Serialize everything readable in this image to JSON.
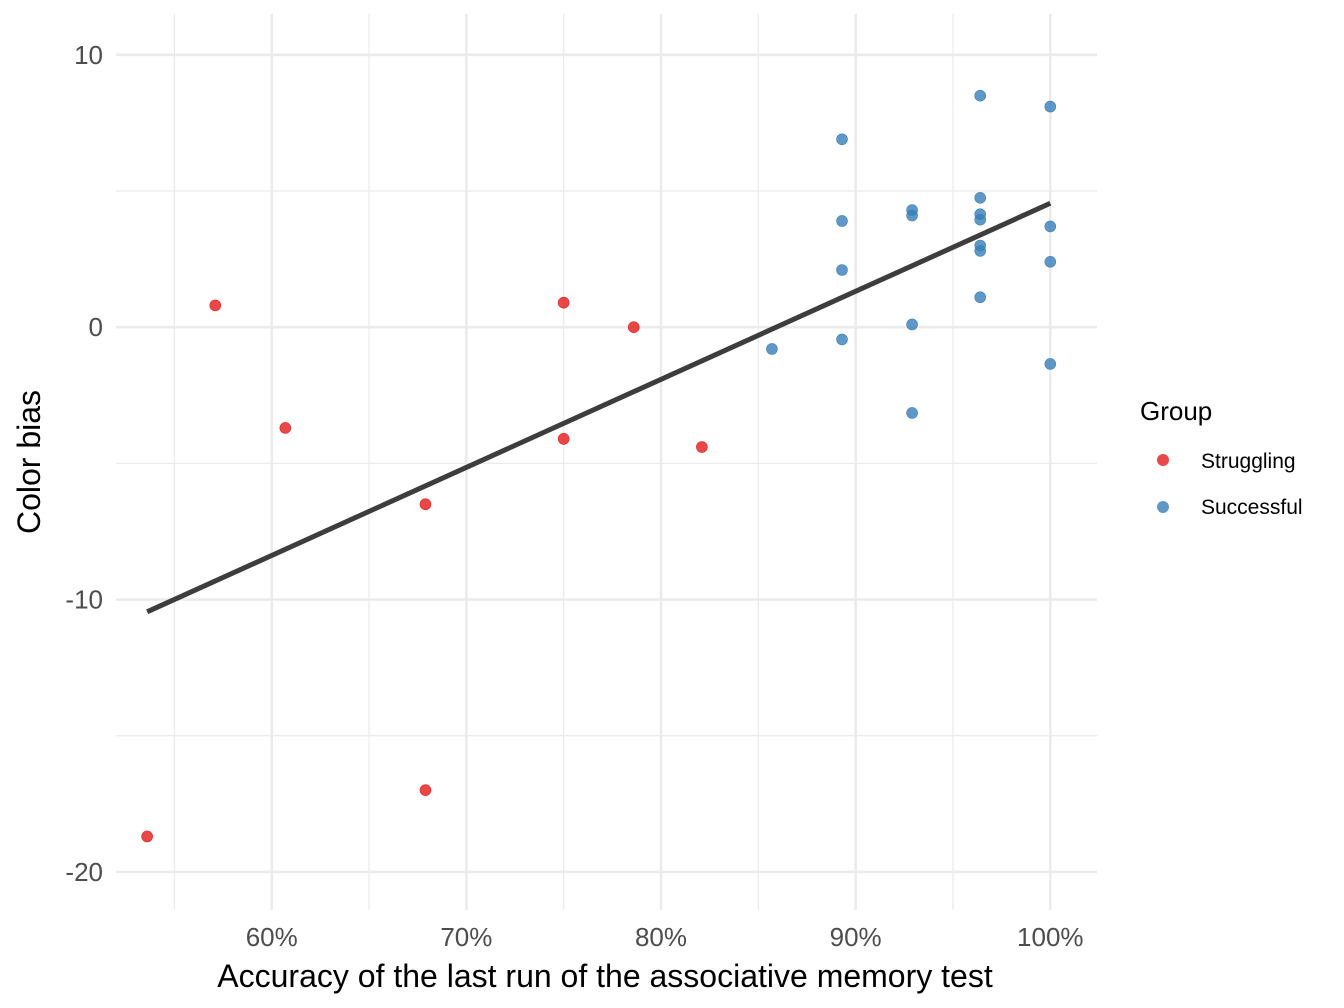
{
  "chart_data": {
    "type": "scatter",
    "title": "",
    "xlabel": "Accuracy of the last run of the associative memory test",
    "ylabel": "Color bias",
    "xlim": [
      0.52,
      1.024
    ],
    "ylim": [
      -21.4,
      11.5
    ],
    "x_ticks": [
      0.6,
      0.7,
      0.8,
      0.9,
      1.0
    ],
    "x_tick_labels": [
      "60%",
      "70%",
      "80%",
      "90%",
      "100%"
    ],
    "x_minor_ticks": [
      0.55,
      0.65,
      0.75,
      0.85,
      0.95
    ],
    "y_ticks": [
      10,
      0,
      -10,
      -20
    ],
    "y_tick_labels": [
      "10",
      "0",
      "-10",
      "-20"
    ],
    "y_minor_ticks": [
      5,
      -5,
      -15
    ],
    "grid": true,
    "legend": {
      "title": "Group",
      "position": "right",
      "entries": [
        "Struggling",
        "Successful"
      ]
    },
    "colors": {
      "Struggling": "#e41a1c",
      "Successful": "#377eb8",
      "trend": "#3d3d3d",
      "grid": "#ebebeb"
    },
    "series": [
      {
        "name": "Struggling",
        "points": [
          [
            0.536,
            -18.7
          ],
          [
            0.571,
            0.8
          ],
          [
            0.607,
            -3.7
          ],
          [
            0.679,
            -6.5
          ],
          [
            0.679,
            -17.0
          ],
          [
            0.75,
            0.9
          ],
          [
            0.75,
            -4.1
          ],
          [
            0.786,
            0.0
          ],
          [
            0.821,
            -4.4
          ]
        ]
      },
      {
        "name": "Successful",
        "points": [
          [
            0.857,
            -0.8
          ],
          [
            0.893,
            6.9
          ],
          [
            0.893,
            3.9
          ],
          [
            0.893,
            2.1
          ],
          [
            0.893,
            -0.45
          ],
          [
            0.929,
            4.3
          ],
          [
            0.929,
            4.1
          ],
          [
            0.929,
            0.1
          ],
          [
            0.929,
            -3.15
          ],
          [
            0.964,
            8.5
          ],
          [
            0.964,
            4.75
          ],
          [
            0.964,
            4.15
          ],
          [
            0.964,
            3.95
          ],
          [
            0.964,
            3.0
          ],
          [
            0.964,
            2.8
          ],
          [
            0.964,
            1.1
          ],
          [
            1.0,
            8.1
          ],
          [
            1.0,
            3.7
          ],
          [
            1.0,
            2.4
          ],
          [
            1.0,
            -1.35
          ]
        ]
      }
    ],
    "trend_line": {
      "x": [
        0.536,
        1.0
      ],
      "y": [
        -10.45,
        4.55
      ]
    }
  }
}
